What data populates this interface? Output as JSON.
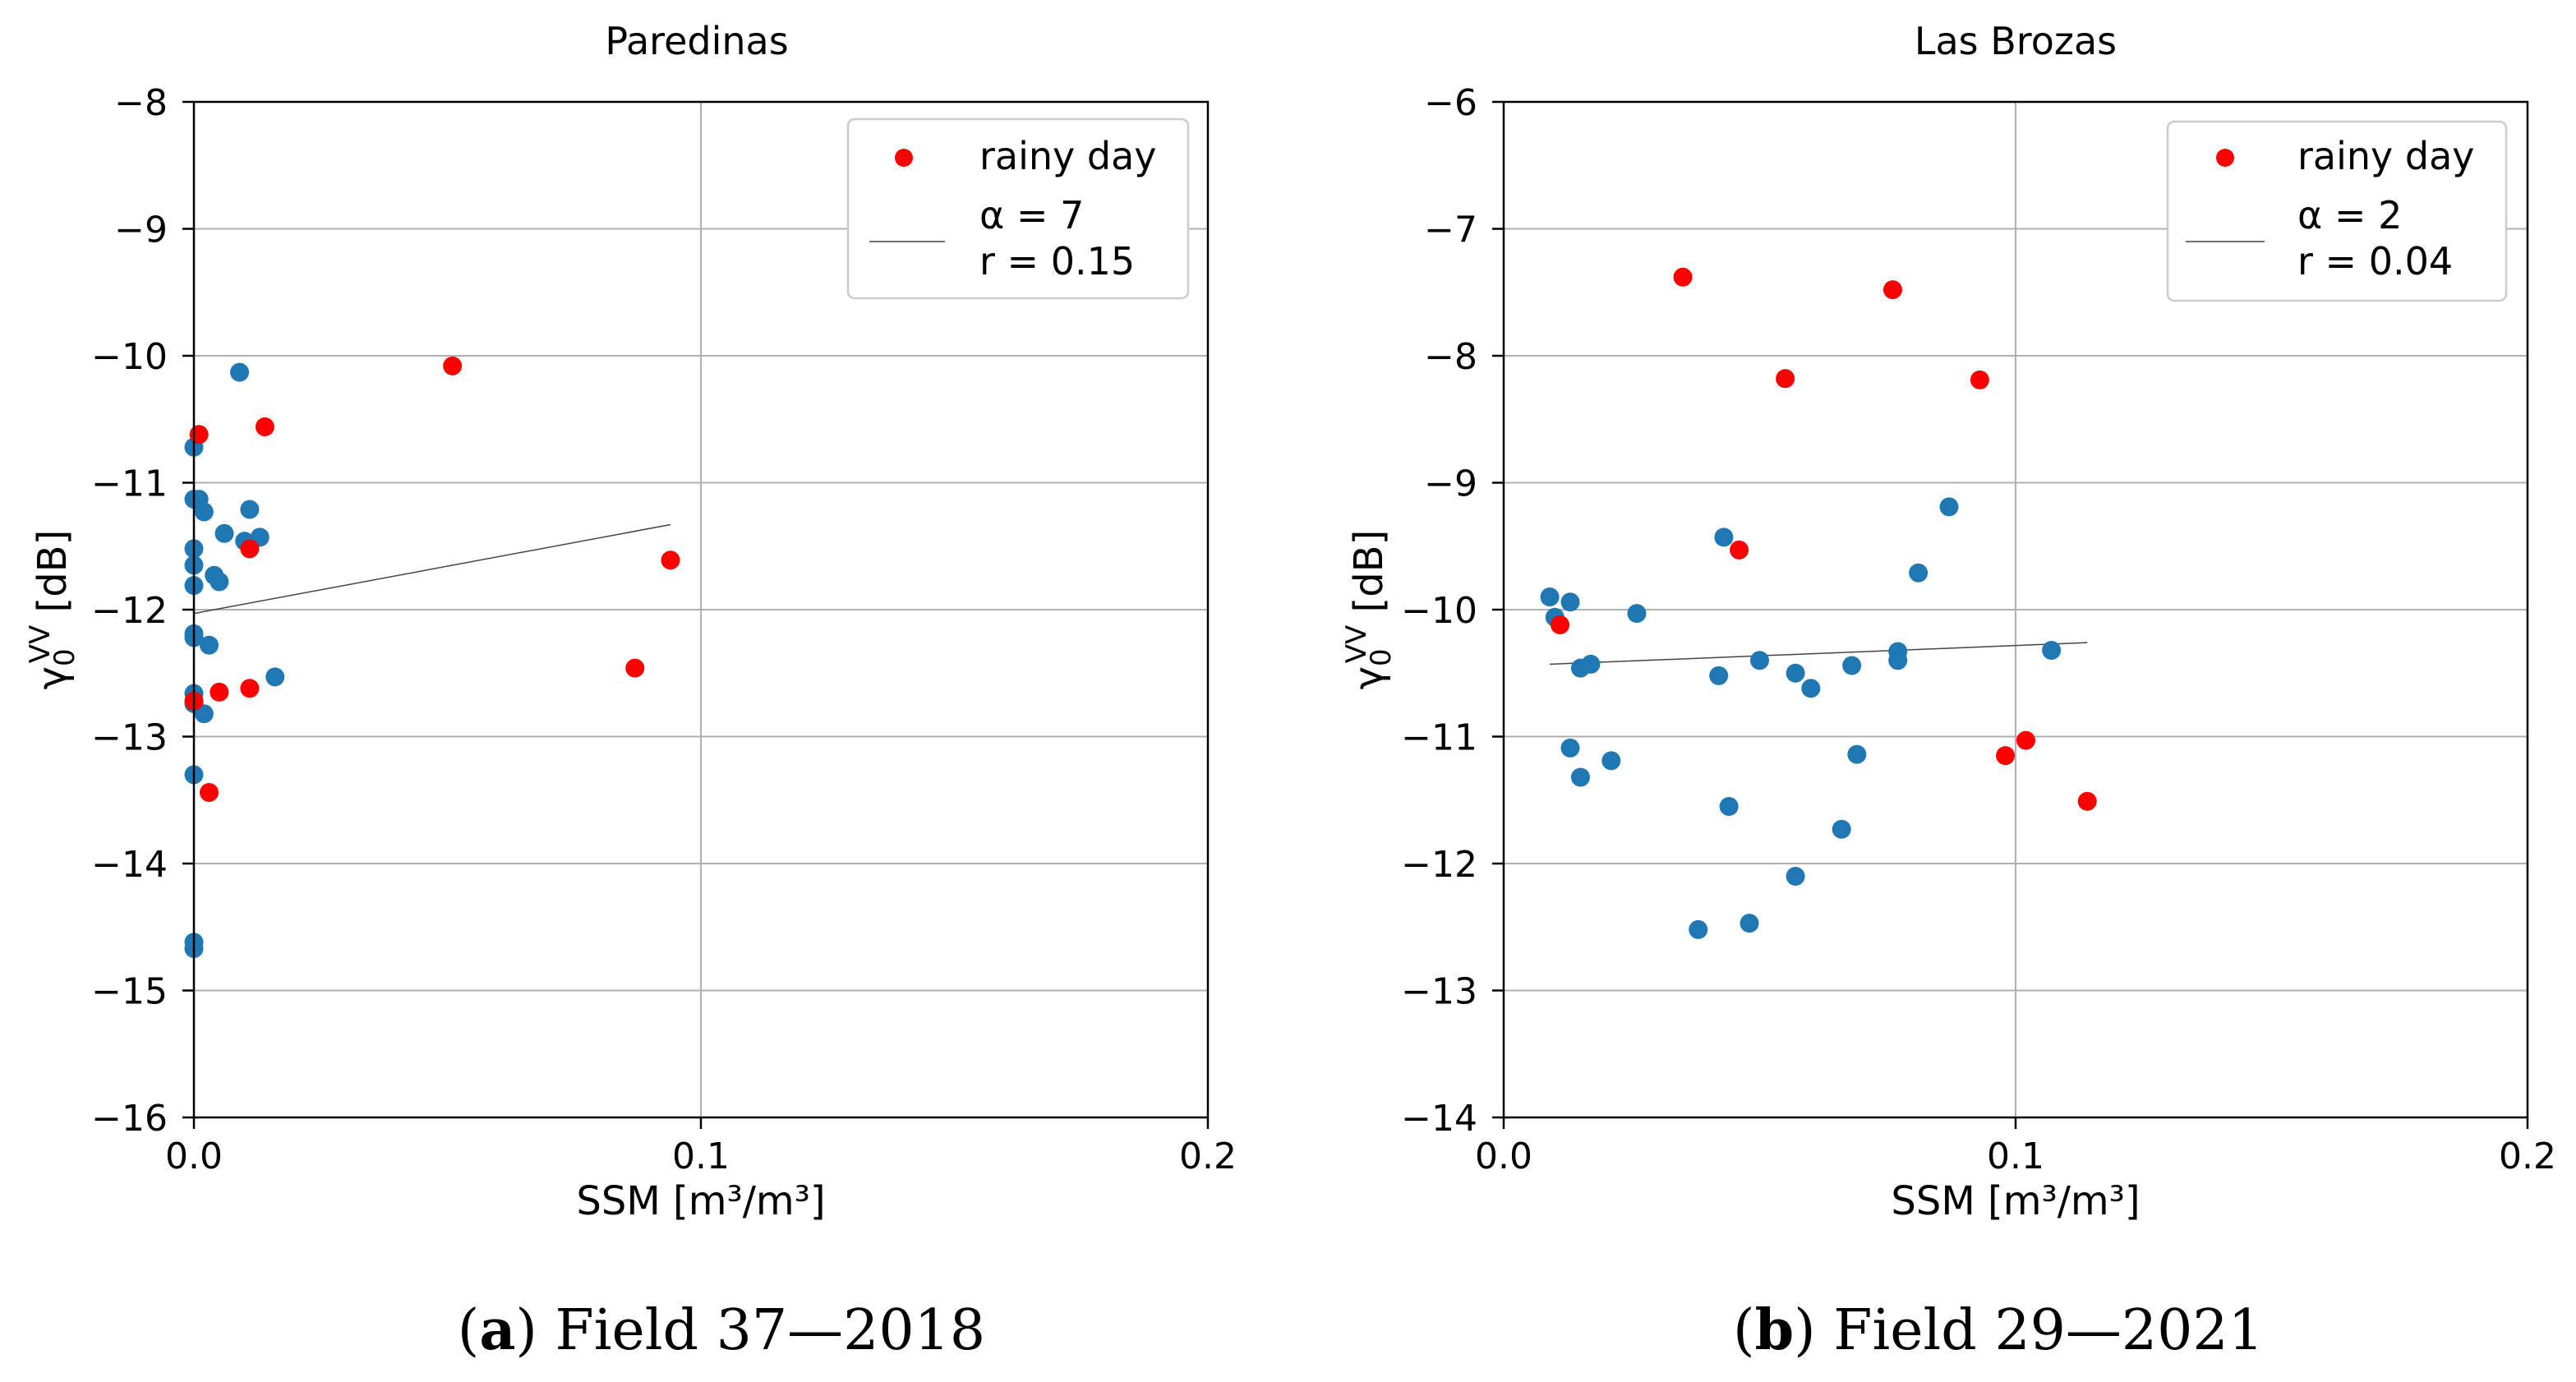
{
  "chart_data": [
    {
      "type": "scatter",
      "title": "Paredinas",
      "xlabel": "SSM [m³/m³]",
      "ylabel": "γ0VV [dB]",
      "xlim": [
        0.0,
        0.2
      ],
      "ylim": [
        -16,
        -8
      ],
      "xticks": [
        {
          "value": 0.0,
          "label": "0.0"
        },
        {
          "value": 0.1,
          "label": "0.1"
        },
        {
          "value": 0.2,
          "label": "0.2"
        }
      ],
      "yticks": [
        {
          "value": -8,
          "label": "−8"
        },
        {
          "value": -9,
          "label": "−9"
        },
        {
          "value": -10,
          "label": "−10"
        },
        {
          "value": -11,
          "label": "−11"
        },
        {
          "value": -12,
          "label": "−12"
        },
        {
          "value": -13,
          "label": "−13"
        },
        {
          "value": -14,
          "label": "−14"
        },
        {
          "value": -15,
          "label": "−15"
        },
        {
          "value": -16,
          "label": "−16"
        }
      ],
      "grid": true,
      "legend": {
        "placement": "top-right",
        "rainy_label": "rainy day",
        "fit_label_1": "α = 7",
        "fit_label_2": "r = 0.15"
      },
      "fit_line": {
        "x": [
          0.0,
          0.094
        ],
        "y": [
          -12.03,
          -11.33
        ]
      },
      "series": [
        {
          "name": "normal",
          "color": "#1f77b4",
          "points": [
            [
              0.009,
              -10.13
            ],
            [
              0.0,
              -10.72
            ],
            [
              0.0,
              -11.13
            ],
            [
              0.001,
              -11.13
            ],
            [
              0.002,
              -11.23
            ],
            [
              0.011,
              -11.21
            ],
            [
              0.006,
              -11.4
            ],
            [
              0.013,
              -11.43
            ],
            [
              0.01,
              -11.46
            ],
            [
              0.0,
              -11.52
            ],
            [
              0.0,
              -11.65
            ],
            [
              0.004,
              -11.73
            ],
            [
              0.005,
              -11.78
            ],
            [
              0.0,
              -11.81
            ],
            [
              0.0,
              -12.19
            ],
            [
              0.0,
              -12.22
            ],
            [
              0.003,
              -12.28
            ],
            [
              0.016,
              -12.53
            ],
            [
              0.0,
              -12.66
            ],
            [
              0.0,
              -12.74
            ],
            [
              0.002,
              -12.82
            ],
            [
              0.0,
              -13.3
            ],
            [
              0.0,
              -14.62
            ],
            [
              0.0,
              -14.67
            ]
          ]
        },
        {
          "name": "rainy day",
          "color": "#ff0000",
          "points": [
            [
              0.051,
              -10.08
            ],
            [
              0.014,
              -10.56
            ],
            [
              0.001,
              -10.62
            ],
            [
              0.011,
              -11.52
            ],
            [
              0.094,
              -11.61
            ],
            [
              0.087,
              -12.46
            ],
            [
              0.011,
              -12.62
            ],
            [
              0.005,
              -12.65
            ],
            [
              0.0,
              -12.72
            ],
            [
              0.003,
              -13.44
            ]
          ]
        }
      ]
    },
    {
      "type": "scatter",
      "title": "Las Brozas",
      "xlabel": "SSM [m³/m³]",
      "ylabel": "γ0VV [dB]",
      "xlim": [
        0.0,
        0.2
      ],
      "ylim": [
        -14,
        -6
      ],
      "xticks": [
        {
          "value": 0.0,
          "label": "0.0"
        },
        {
          "value": 0.1,
          "label": "0.1"
        },
        {
          "value": 0.2,
          "label": "0.2"
        }
      ],
      "yticks": [
        {
          "value": -6,
          "label": "−6"
        },
        {
          "value": -7,
          "label": "−7"
        },
        {
          "value": -8,
          "label": "−8"
        },
        {
          "value": -9,
          "label": "−9"
        },
        {
          "value": -10,
          "label": "−10"
        },
        {
          "value": -11,
          "label": "−11"
        },
        {
          "value": -12,
          "label": "−12"
        },
        {
          "value": -13,
          "label": "−13"
        },
        {
          "value": -14,
          "label": "−14"
        }
      ],
      "grid": true,
      "legend": {
        "placement": "top-right",
        "rainy_label": "rainy day",
        "fit_label_1": "α = 2",
        "fit_label_2": "r = 0.04"
      },
      "fit_line": {
        "x": [
          0.009,
          0.114
        ],
        "y": [
          -10.43,
          -10.26
        ]
      },
      "series": [
        {
          "name": "normal",
          "color": "#1f77b4",
          "points": [
            [
              0.009,
              -9.9
            ],
            [
              0.01,
              -10.06
            ],
            [
              0.013,
              -9.94
            ],
            [
              0.015,
              -10.46
            ],
            [
              0.017,
              -10.43
            ],
            [
              0.026,
              -10.03
            ],
            [
              0.013,
              -11.09
            ],
            [
              0.015,
              -11.32
            ],
            [
              0.021,
              -11.19
            ],
            [
              0.042,
              -10.52
            ],
            [
              0.043,
              -9.43
            ],
            [
              0.044,
              -11.55
            ],
            [
              0.038,
              -12.52
            ],
            [
              0.048,
              -12.47
            ],
            [
              0.05,
              -10.4
            ],
            [
              0.057,
              -10.5
            ],
            [
              0.06,
              -10.62
            ],
            [
              0.057,
              -12.1
            ],
            [
              0.066,
              -11.73
            ],
            [
              0.068,
              -10.44
            ],
            [
              0.069,
              -11.14
            ],
            [
              0.077,
              -10.33
            ],
            [
              0.077,
              -10.4
            ],
            [
              0.081,
              -9.71
            ],
            [
              0.087,
              -9.19
            ],
            [
              0.107,
              -10.32
            ]
          ]
        },
        {
          "name": "rainy day",
          "color": "#ff0000",
          "points": [
            [
              0.035,
              -7.38
            ],
            [
              0.076,
              -7.48
            ],
            [
              0.055,
              -8.18
            ],
            [
              0.093,
              -8.19
            ],
            [
              0.046,
              -9.53
            ],
            [
              0.011,
              -10.12
            ],
            [
              0.098,
              -11.15
            ],
            [
              0.102,
              -11.03
            ],
            [
              0.114,
              -11.51
            ]
          ]
        }
      ]
    }
  ],
  "captions": [
    {
      "letter": "a",
      "text": "Field 37—2018"
    },
    {
      "letter": "b",
      "text": "Field 29—2021"
    }
  ]
}
